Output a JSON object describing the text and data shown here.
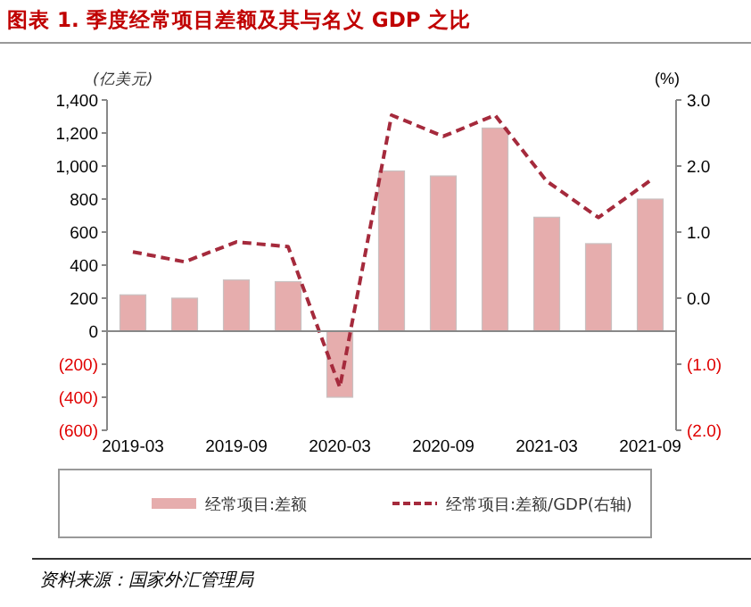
{
  "chart_data": {
    "type": "bar",
    "title": "图表 1. 季度经常项目差额及其与名义 GDP 之比",
    "ylabel": "(亿美元)",
    "y2label": "(%)",
    "categories": [
      "2019-03",
      null,
      "2019-09",
      null,
      "2020-03",
      null,
      "2020-09",
      null,
      "2021-03",
      null,
      "2021-09"
    ],
    "series": [
      {
        "name": "经常项目:差额",
        "color": "#e6adad",
        "values": [
          220,
          200,
          310,
          300,
          -400,
          970,
          940,
          1230,
          690,
          530,
          800
        ]
      },
      {
        "name": "经常项目:差额/GDP(右轴)",
        "type": "line",
        "axis": "y2",
        "color": "#a52a3c",
        "line_style": "dashed",
        "values": [
          0.7,
          0.55,
          0.85,
          0.78,
          -1.35,
          2.77,
          2.45,
          2.77,
          1.77,
          1.22,
          1.78
        ]
      }
    ],
    "ylim": [
      -600,
      1400
    ],
    "yticks": [
      {
        "value": -600,
        "label": "(600)"
      },
      {
        "value": -400,
        "label": "(400)"
      },
      {
        "value": -200,
        "label": "(200)"
      },
      0,
      {
        "value": 200,
        "label": "200"
      },
      {
        "value": 400,
        "label": "400"
      },
      {
        "value": 600,
        "label": "600"
      },
      {
        "value": 800,
        "label": "800"
      },
      {
        "value": 1000,
        "label": "1,000"
      },
      {
        "value": 1200,
        "label": "1,200"
      },
      {
        "value": 1400,
        "label": "1,400"
      }
    ],
    "y2lim": [
      -2,
      3
    ],
    "y2ticks": [
      {
        "value": -2,
        "label": "(2.0)"
      },
      {
        "value": -1,
        "label": "(1.0)"
      },
      {
        "value": 0,
        "label": "0.0"
      },
      {
        "value": 1,
        "label": "1.0"
      },
      {
        "value": 2,
        "label": "2.0"
      },
      {
        "value": 3,
        "label": "3.0"
      }
    ],
    "legend": "bottom",
    "annotations": [
      "资料来源：国家外汇管理局"
    ]
  }
}
